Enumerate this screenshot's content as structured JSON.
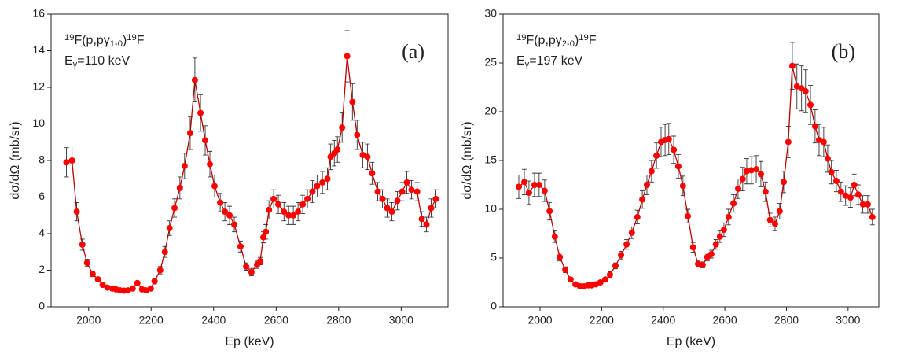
{
  "chart_data": [
    {
      "type": "scatter",
      "xlabel": "Ep (keV)",
      "ylabel": "dσ/dΩ (mb/sr)",
      "reaction": [
        {
          "text": "19",
          "style": "sup"
        },
        {
          "text": "F(p,pγ"
        },
        {
          "text": "1-0",
          "style": "sub"
        },
        {
          "text": ")"
        },
        {
          "text": "19",
          "style": "sup"
        },
        {
          "text": "F"
        }
      ],
      "energy": [
        {
          "text": "E"
        },
        {
          "text": "γ",
          "style": "sub"
        },
        {
          "text": "=110 keV"
        }
      ],
      "panel_label": "(a)",
      "xlim": [
        1880,
        3150
      ],
      "xticks": [
        2000,
        2200,
        2400,
        2600,
        2800,
        3000
      ],
      "ylim": [
        0,
        16
      ],
      "yticks": [
        0,
        2,
        4,
        6,
        8,
        10,
        12,
        14,
        16
      ],
      "series": [
        {
          "color": "#ff0000",
          "line_color": "#c00000",
          "x": [
            1929,
            1947,
            1962,
            1980,
            1995,
            2013,
            2030,
            2045,
            2060,
            2076,
            2088,
            2101,
            2113,
            2126,
            2141,
            2156,
            2171,
            2184,
            2199,
            2211,
            2229,
            2244,
            2259,
            2275,
            2292,
            2307,
            2325,
            2340,
            2358,
            2373,
            2388,
            2403,
            2421,
            2436,
            2451,
            2466,
            2486,
            2504,
            2521,
            2539,
            2549,
            2559,
            2567,
            2577,
            2592,
            2607,
            2625,
            2640,
            2655,
            2670,
            2685,
            2700,
            2716,
            2731,
            2748,
            2764,
            2774,
            2786,
            2796,
            2811,
            2827,
            2844,
            2859,
            2877,
            2892,
            2907,
            2925,
            2940,
            2955,
            2970,
            2988,
            3003,
            3018,
            3033,
            3051,
            3066,
            3081,
            3096,
            3111
          ],
          "values": [
            7.9,
            8.0,
            5.2,
            3.4,
            2.4,
            1.8,
            1.5,
            1.2,
            1.05,
            1.0,
            0.95,
            0.9,
            0.88,
            0.9,
            1.0,
            1.3,
            0.95,
            0.9,
            1.0,
            1.4,
            2.0,
            3.0,
            4.3,
            5.4,
            6.5,
            7.7,
            9.5,
            12.4,
            10.6,
            9.1,
            7.8,
            6.6,
            5.7,
            5.2,
            5.0,
            4.5,
            3.3,
            2.2,
            1.9,
            2.3,
            2.5,
            3.8,
            4.1,
            5.3,
            5.9,
            5.6,
            5.2,
            5.0,
            5.0,
            5.2,
            5.6,
            5.9,
            6.3,
            6.6,
            6.8,
            7.0,
            8.2,
            8.4,
            8.6,
            9.8,
            13.7,
            11.2,
            9.4,
            8.3,
            8.2,
            7.3,
            6.3,
            5.9,
            5.4,
            5.2,
            5.8,
            6.3,
            6.8,
            6.4,
            6.3,
            4.8,
            4.5,
            5.4,
            5.9
          ],
          "errors": [
            0.8,
            0.8,
            0.5,
            0.3,
            0.2,
            0.15,
            0.1,
            0.1,
            0.1,
            0.1,
            0.1,
            0.1,
            0.1,
            0.1,
            0.1,
            0.1,
            0.1,
            0.1,
            0.1,
            0.15,
            0.2,
            0.3,
            0.4,
            0.5,
            0.6,
            0.7,
            0.9,
            1.2,
            1.0,
            0.8,
            0.7,
            0.6,
            0.5,
            0.5,
            0.5,
            0.4,
            0.3,
            0.2,
            0.2,
            0.2,
            0.2,
            0.3,
            0.4,
            0.5,
            0.5,
            0.5,
            0.5,
            0.5,
            0.5,
            0.5,
            0.5,
            0.5,
            0.6,
            0.6,
            0.6,
            0.6,
            0.7,
            0.7,
            0.7,
            0.8,
            1.4,
            1.0,
            0.8,
            0.7,
            0.7,
            0.6,
            0.5,
            0.5,
            0.5,
            0.5,
            0.5,
            0.5,
            0.6,
            0.5,
            0.5,
            0.4,
            0.4,
            0.5,
            0.5
          ]
        }
      ]
    },
    {
      "type": "scatter",
      "xlabel": "Ep (keV)",
      "ylabel": "dσ/dΩ (mb/sr)",
      "reaction": [
        {
          "text": "19",
          "style": "sup"
        },
        {
          "text": "F(p,pγ"
        },
        {
          "text": "2-0",
          "style": "sub"
        },
        {
          "text": ")"
        },
        {
          "text": "19",
          "style": "sup"
        },
        {
          "text": "F"
        }
      ],
      "energy": [
        {
          "text": "E"
        },
        {
          "text": "γ",
          "style": "sub"
        },
        {
          "text": "=197 keV"
        }
      ],
      "panel_label": "(b)",
      "xlim": [
        1880,
        3100
      ],
      "xticks": [
        2000,
        2200,
        2400,
        2600,
        2800,
        3000
      ],
      "ylim": [
        0,
        30
      ],
      "yticks": [
        0,
        5,
        10,
        15,
        20,
        25,
        30
      ],
      "series": [
        {
          "color": "#ff0000",
          "line_color": "#c00000",
          "x": [
            1931,
            1949,
            1964,
            1982,
            1997,
            2015,
            2031,
            2048,
            2064,
            2082,
            2099,
            2115,
            2130,
            2143,
            2156,
            2168,
            2181,
            2196,
            2212,
            2227,
            2245,
            2263,
            2281,
            2298,
            2316,
            2332,
            2347,
            2362,
            2378,
            2393,
            2406,
            2418,
            2434,
            2449,
            2464,
            2480,
            2497,
            2513,
            2528,
            2543,
            2556,
            2571,
            2584,
            2597,
            2612,
            2628,
            2643,
            2658,
            2671,
            2686,
            2702,
            2717,
            2732,
            2747,
            2763,
            2778,
            2791,
            2806,
            2819,
            2834,
            2849,
            2862,
            2878,
            2893,
            2906,
            2921,
            2934,
            2946,
            2962,
            2977,
            2992,
            3008,
            3020,
            3033,
            3048,
            3064,
            3079
          ],
          "values": [
            12.3,
            12.8,
            11.7,
            12.5,
            12.5,
            11.9,
            9.8,
            7.2,
            5.1,
            3.8,
            2.8,
            2.3,
            2.1,
            2.1,
            2.2,
            2.2,
            2.3,
            2.5,
            2.8,
            3.3,
            4.2,
            5.3,
            6.4,
            7.6,
            9.2,
            11.0,
            12.5,
            13.9,
            15.5,
            16.9,
            17.1,
            17.2,
            16.1,
            14.4,
            12.4,
            9.3,
            6.1,
            4.4,
            4.3,
            5.1,
            5.4,
            6.4,
            7.2,
            7.9,
            9.2,
            10.6,
            12.1,
            13.1,
            13.9,
            14.0,
            14.1,
            13.6,
            11.8,
            8.9,
            8.5,
            9.8,
            12.8,
            16.9,
            24.7,
            22.6,
            22.4,
            22.1,
            20.7,
            18.5,
            17.1,
            16.9,
            15.2,
            13.8,
            12.9,
            11.8,
            11.4,
            11.2,
            12.5,
            11.5,
            10.5,
            10.5,
            9.2
          ],
          "errors": [
            1.2,
            1.3,
            1.2,
            1.2,
            1.2,
            1.1,
            0.9,
            0.6,
            0.4,
            0.3,
            0.2,
            0.2,
            0.2,
            0.2,
            0.2,
            0.2,
            0.2,
            0.2,
            0.2,
            0.3,
            0.3,
            0.4,
            0.5,
            0.6,
            0.7,
            0.9,
            1.0,
            1.1,
            1.3,
            1.5,
            1.6,
            1.6,
            1.4,
            1.2,
            1.0,
            0.7,
            0.5,
            0.3,
            0.3,
            0.4,
            0.4,
            0.5,
            0.6,
            0.7,
            0.8,
            0.9,
            1.0,
            1.2,
            1.3,
            1.4,
            1.4,
            1.3,
            1.0,
            0.7,
            0.7,
            0.8,
            1.1,
            1.6,
            2.4,
            2.3,
            2.3,
            2.2,
            2.0,
            1.7,
            1.6,
            1.5,
            1.4,
            1.2,
            1.1,
            1.0,
            1.0,
            1.0,
            1.1,
            1.0,
            0.9,
            0.9,
            0.8
          ]
        }
      ]
    }
  ]
}
